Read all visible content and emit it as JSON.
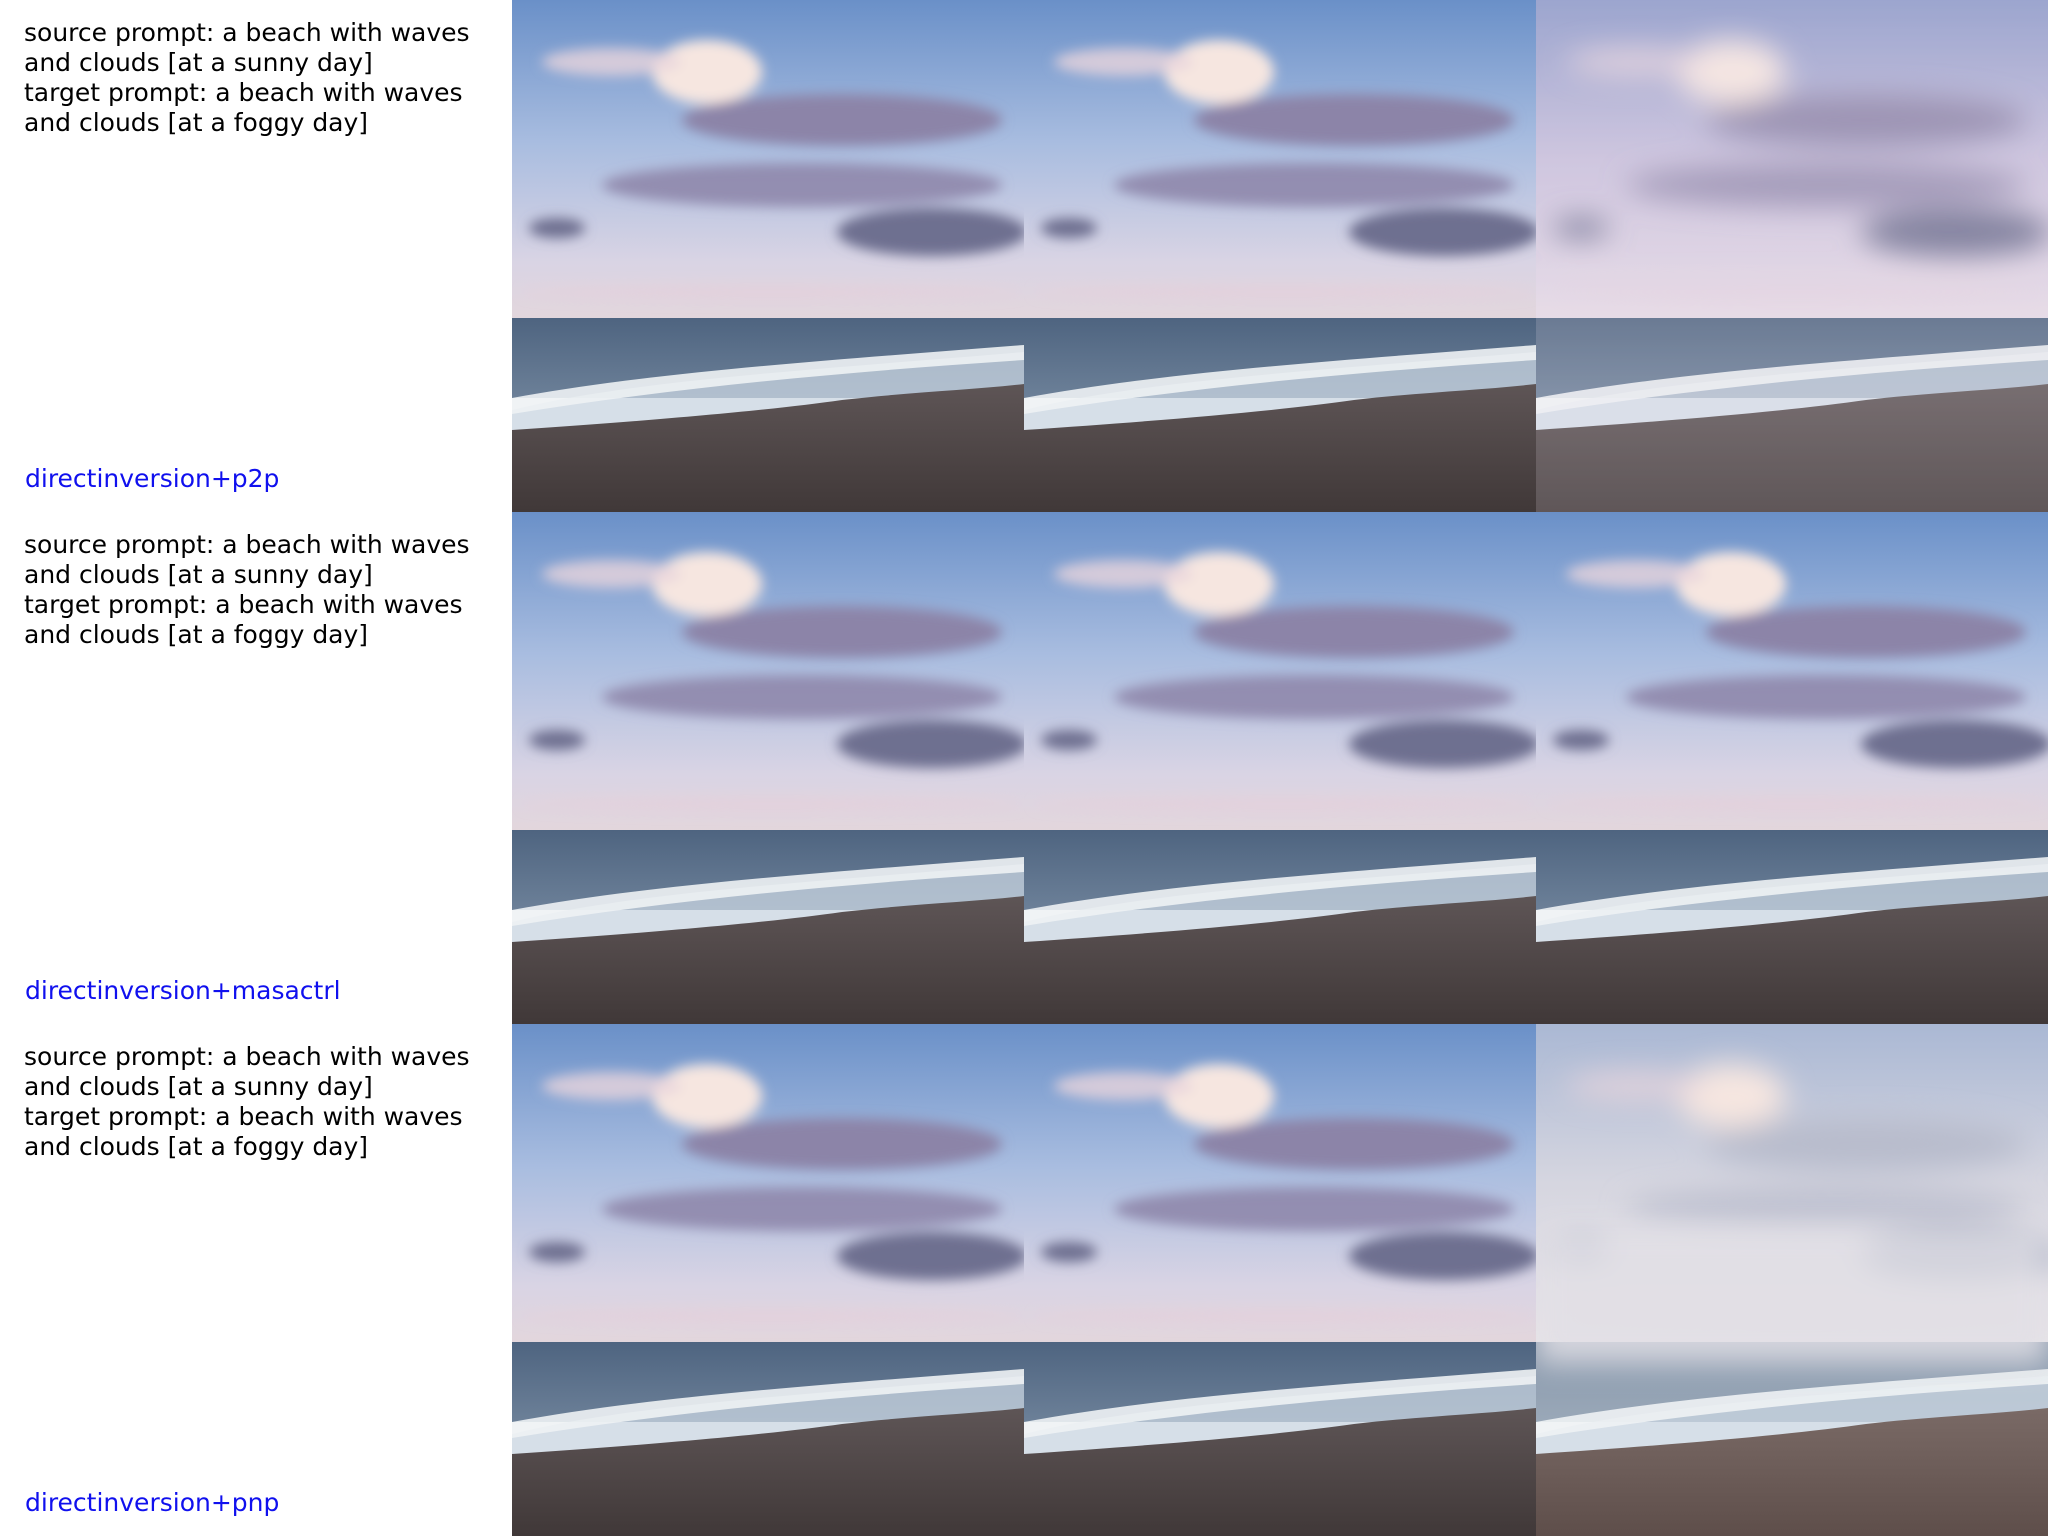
{
  "colors": {
    "method_label": "#1010ee",
    "prompt_text": "#000000"
  },
  "rows": [
    {
      "source_prompt": "source prompt: a beach with waves and clouds [at a sunny day]",
      "target_prompt": "target prompt: a beach with waves and clouds [at a foggy day]",
      "method": "directinversion+p2p",
      "images": [
        "source-beach-image",
        "reconstructed-beach-image",
        "edited-foggy-beach-image"
      ]
    },
    {
      "source_prompt": "source prompt: a beach with waves and clouds [at a sunny day]",
      "target_prompt": "target prompt: a beach with waves and clouds [at a foggy day]",
      "method": "directinversion+masactrl",
      "images": [
        "source-beach-image",
        "reconstructed-beach-image",
        "edited-foggy-beach-image"
      ]
    },
    {
      "source_prompt": "source prompt: a beach with waves and clouds [at a sunny day]",
      "target_prompt": "target prompt: a beach with waves and clouds [at a foggy day]",
      "method": "directinversion+pnp",
      "images": [
        "source-beach-image",
        "reconstructed-beach-image",
        "edited-foggy-beach-image"
      ]
    }
  ]
}
